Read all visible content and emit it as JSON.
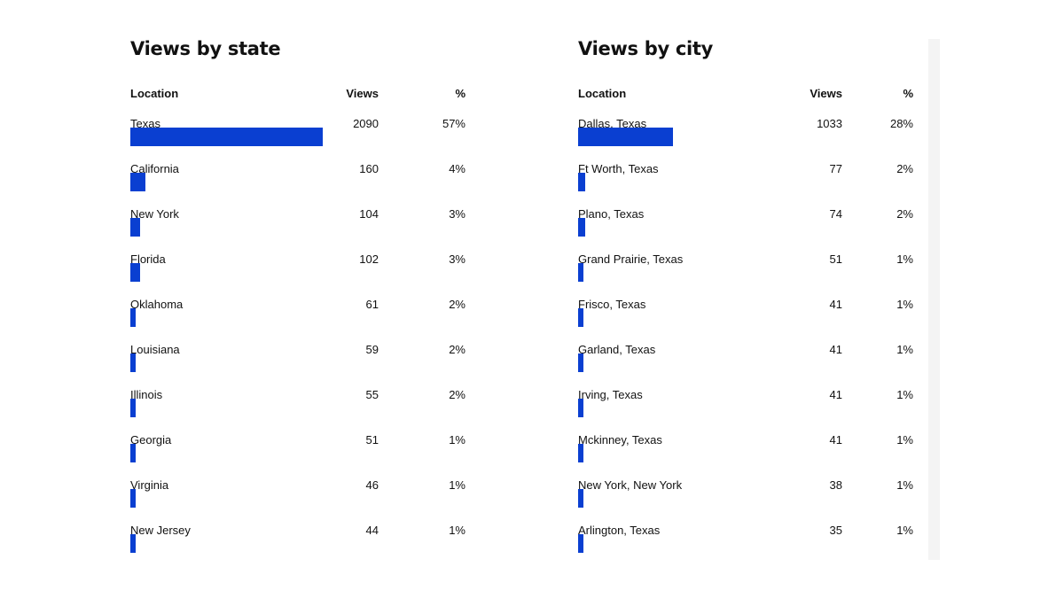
{
  "colors": {
    "bar": "#0a3fd1",
    "text": "#111111",
    "track": "#f4f4f4"
  },
  "chart_data": [
    {
      "type": "bar",
      "orientation": "horizontal",
      "title": "Views by state",
      "columns": {
        "location": "Location",
        "views": "Views",
        "percent": "%"
      },
      "categories": [
        "Texas",
        "California",
        "New York",
        "Florida",
        "Oklahoma",
        "Louisiana",
        "Illinois",
        "Georgia",
        "Virginia",
        "New Jersey"
      ],
      "values": [
        2090,
        160,
        104,
        102,
        61,
        59,
        55,
        51,
        46,
        44
      ],
      "percents": [
        "57%",
        "4%",
        "3%",
        "3%",
        "2%",
        "2%",
        "2%",
        "1%",
        "1%",
        "1%"
      ],
      "percent_values": [
        57,
        4,
        3,
        3,
        2,
        2,
        2,
        1,
        1,
        1
      ]
    },
    {
      "type": "bar",
      "orientation": "horizontal",
      "title": "Views by city",
      "columns": {
        "location": "Location",
        "views": "Views",
        "percent": "%"
      },
      "categories": [
        "Dallas, Texas",
        "Ft Worth, Texas",
        "Plano, Texas",
        "Grand Prairie, Texas",
        "Frisco, Texas",
        "Garland, Texas",
        "Irving, Texas",
        "Mckinney, Texas",
        "New York, New York",
        "Arlington, Texas"
      ],
      "values": [
        1033,
        77,
        74,
        51,
        41,
        41,
        41,
        41,
        38,
        35
      ],
      "percents": [
        "28%",
        "2%",
        "2%",
        "1%",
        "1%",
        "1%",
        "1%",
        "1%",
        "1%",
        "1%"
      ],
      "percent_values": [
        28,
        2,
        2,
        1,
        1,
        1,
        1,
        1,
        1,
        1
      ]
    }
  ]
}
